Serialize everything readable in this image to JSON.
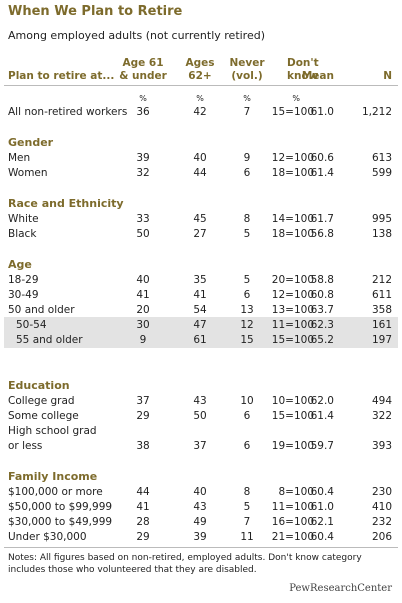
{
  "header": {
    "title": "When We Plan to Retire",
    "subtitle": "Among employed adults (not currently retired)"
  },
  "table": {
    "columns": [
      [
        "Plan to retire at..."
      ],
      [
        "Age 61",
        "& under"
      ],
      [
        "Ages",
        "62+"
      ],
      [
        "Never",
        "(vol.)"
      ],
      [
        "Don't",
        "know"
      ],
      [
        "Mean"
      ],
      [
        "N"
      ]
    ],
    "units": [
      "%",
      "%",
      "%",
      "%"
    ],
    "total": {
      "label": "All non-retired workers",
      "cells": [
        "36",
        "42",
        "7",
        "15=100",
        "61.0",
        "1,212"
      ]
    },
    "groups": [
      {
        "heading": "Gender",
        "rows": [
          {
            "label": "Men",
            "cells": [
              "39",
              "40",
              "9",
              "12=100",
              "60.6",
              "613"
            ]
          },
          {
            "label": "Women",
            "cells": [
              "32",
              "44",
              "6",
              "18=100",
              "61.4",
              "599"
            ]
          }
        ]
      },
      {
        "heading": "Race and Ethnicity",
        "rows": [
          {
            "label": "White",
            "cells": [
              "33",
              "45",
              "8",
              "14=100",
              "61.7",
              "995"
            ]
          },
          {
            "label": "Black",
            "cells": [
              "50",
              "27",
              "5",
              "18=100",
              "56.8",
              "138"
            ]
          }
        ]
      },
      {
        "heading": "Age",
        "rows": [
          {
            "label": "18-29",
            "cells": [
              "40",
              "35",
              "5",
              "20=100",
              "58.8",
              "212"
            ]
          },
          {
            "label": "30-49",
            "cells": [
              "41",
              "41",
              "6",
              "12=100",
              "60.8",
              "611"
            ]
          },
          {
            "label": "50 and older",
            "cells": [
              "20",
              "54",
              "13",
              "13=100",
              "63.7",
              "358"
            ]
          },
          {
            "label": "50-54",
            "sub": true,
            "cells": [
              "30",
              "47",
              "12",
              "11=100",
              "62.3",
              "161"
            ]
          },
          {
            "label": "55 and older",
            "sub": true,
            "cells": [
              "9",
              "61",
              "15",
              "15=100",
              "65.2",
              "197"
            ]
          }
        ]
      },
      {
        "heading": "Education",
        "rows": [
          {
            "label": "College grad",
            "cells": [
              "37",
              "43",
              "10",
              "10=100",
              "62.0",
              "494"
            ]
          },
          {
            "label": "Some college",
            "cells": [
              "29",
              "50",
              "6",
              "15=100",
              "61.4",
              "322"
            ]
          },
          {
            "label_lines": [
              "High school grad",
              "or less"
            ],
            "cells": [
              "38",
              "37",
              "6",
              "19=100",
              "59.7",
              "393"
            ]
          }
        ]
      },
      {
        "heading": "Family Income",
        "rows": [
          {
            "label": "$100,000 or more",
            "cells": [
              "44",
              "40",
              "8",
              "8=100",
              "60.4",
              "230"
            ]
          },
          {
            "label": "$50,000 to $99,999",
            "cells": [
              "41",
              "43",
              "5",
              "11=100",
              "61.0",
              "410"
            ]
          },
          {
            "label": "$30,000 to $49,999",
            "cells": [
              "28",
              "49",
              "7",
              "16=100",
              "62.1",
              "232"
            ]
          },
          {
            "label": "Under $30,000",
            "cells": [
              "29",
              "39",
              "11",
              "21=100",
              "60.4",
              "206"
            ]
          }
        ]
      }
    ]
  },
  "notes": [
    "Notes: All figures based on non-retired, employed adults. Don't know category",
    "includes those who volunteered that they are disabled."
  ],
  "source": "PewResearchCenter"
}
